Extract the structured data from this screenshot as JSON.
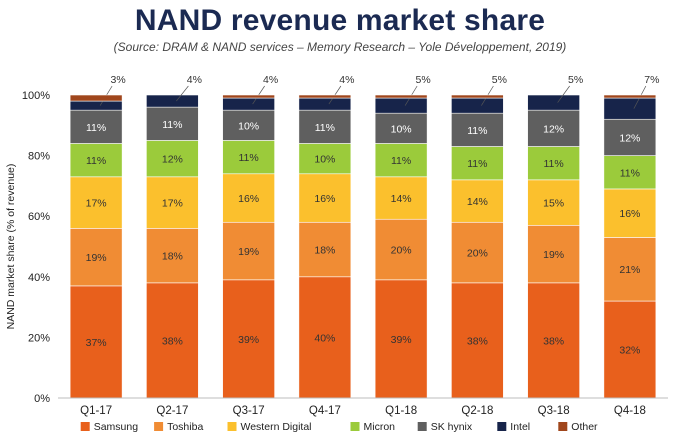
{
  "chart_data": {
    "type": "bar",
    "stacked": true,
    "title": "NAND revenue market share",
    "subtitle": "(Source: DRAM & NAND services – Memory Research – Yole Développement, 2019)",
    "ylabel": "NAND market share (% of revenue)",
    "xlabel": "",
    "ylim": [
      0,
      100
    ],
    "yticks": [
      "0%",
      "20%",
      "40%",
      "60%",
      "80%",
      "100%"
    ],
    "grid": false,
    "legend_position": "bottom",
    "categories": [
      "Q1-17",
      "Q2-17",
      "Q3-17",
      "Q4-17",
      "Q1-18",
      "Q2-18",
      "Q3-18",
      "Q4-18"
    ],
    "series": [
      {
        "name": "Samsung",
        "color": "#e8601c",
        "labels": [
          "37%",
          "38%",
          "39%",
          "40%",
          "39%",
          "38%",
          "38%",
          "32%"
        ],
        "values": [
          37,
          38,
          39,
          40,
          39,
          38,
          38,
          32
        ]
      },
      {
        "name": "Toshiba",
        "color": "#f08c34",
        "labels": [
          "19%",
          "18%",
          "19%",
          "18%",
          "20%",
          "20%",
          "19%",
          "21%"
        ],
        "values": [
          19,
          18,
          19,
          18,
          20,
          20,
          19,
          21
        ]
      },
      {
        "name": "Western Digital",
        "color": "#fbc02d",
        "labels": [
          "17%",
          "17%",
          "16%",
          "16%",
          "14%",
          "14%",
          "15%",
          "16%"
        ],
        "values": [
          17,
          17,
          16,
          16,
          14,
          14,
          15,
          16
        ]
      },
      {
        "name": "Micron",
        "color": "#9bcb3b",
        "labels": [
          "11%",
          "12%",
          "11%",
          "10%",
          "11%",
          "11%",
          "11%",
          "11%"
        ],
        "values": [
          11,
          12,
          11,
          10,
          11,
          11,
          11,
          11
        ]
      },
      {
        "name": "SK hynix",
        "color": "#5f5f5f",
        "labels": [
          "11%",
          "11%",
          "10%",
          "11%",
          "10%",
          "11%",
          "12%",
          "12%"
        ],
        "values": [
          11,
          11,
          10,
          11,
          10,
          11,
          12,
          12
        ]
      },
      {
        "name": "Intel",
        "color": "#17244a",
        "labels": [
          "3%",
          "4%",
          "4%",
          "4%",
          "5%",
          "5%",
          "5%",
          "7%"
        ],
        "values": [
          3,
          4,
          4,
          4,
          5,
          5,
          5,
          7
        ]
      },
      {
        "name": "Other",
        "color": "#a0461c",
        "labels": [],
        "values": [
          2,
          0,
          1,
          1,
          1,
          1,
          0,
          1
        ]
      }
    ]
  }
}
